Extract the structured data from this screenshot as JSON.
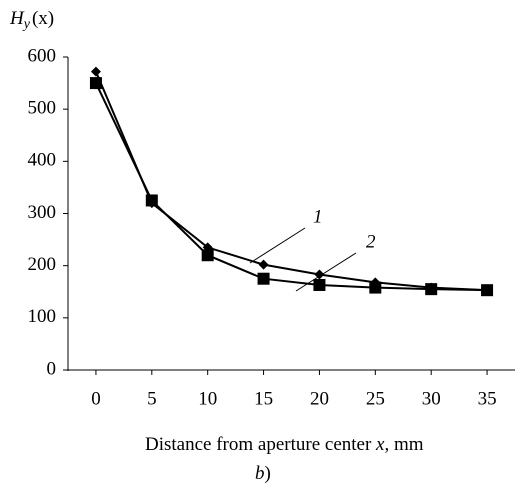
{
  "chart_data": {
    "type": "line",
    "y_label": {
      "symbol": "H",
      "subscript": "y",
      "argument": "(x)"
    },
    "x_label": {
      "before": "Distance from aperture center ",
      "variable": "x",
      "after": ", mm"
    },
    "caption": {
      "letter": "b",
      "paren": ")"
    },
    "x": [
      0,
      5,
      10,
      15,
      20,
      25,
      30,
      35
    ],
    "series": [
      {
        "name": "1",
        "color": "#000000",
        "marker": "diamond",
        "values": [
          572,
          320,
          235,
          202,
          183,
          168,
          158,
          153
        ]
      },
      {
        "name": "2",
        "color": "#000000",
        "marker": "square",
        "values": [
          550,
          325,
          220,
          175,
          163,
          158,
          155,
          153
        ]
      }
    ],
    "xlim": [
      -2.5,
      37.5
    ],
    "xticks": [
      0,
      5,
      10,
      15,
      20,
      25,
      30,
      35
    ],
    "ylim": [
      0,
      600
    ],
    "yticks": [
      0,
      100,
      200,
      300,
      400,
      500,
      600
    ],
    "grid": false
  }
}
